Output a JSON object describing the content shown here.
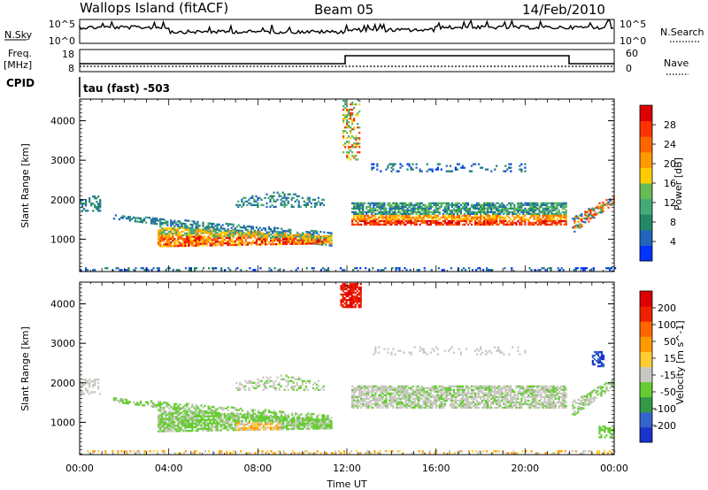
{
  "header": {
    "site": "Wallops Island (fitACF)",
    "beam": "Beam 05",
    "date": "14/Feb/2010"
  },
  "params": {
    "nsky_label": "N.Sky",
    "nsky_ticks": [
      "10^5",
      "10^0"
    ],
    "nsearch_label": "N.Search",
    "nsearch_ticks": [
      "10^5",
      "10^0"
    ],
    "freq_label_1": "Freq.",
    "freq_label_2": "[MHz]",
    "freq_ticks": [
      "18",
      "8"
    ],
    "nave_label": "Nave",
    "nave_ticks": [
      "60",
      "0"
    ],
    "cpid_label": "CPID",
    "cpid_value": "tau (fast) -503"
  },
  "chart_data": [
    {
      "type": "heatmap",
      "title": "",
      "xlabel": "",
      "ylabel": "Slant Range [km]",
      "x_ticks": [
        "00:00",
        "04:00",
        "08:00",
        "12:00",
        "16:00",
        "20:00",
        "00:00"
      ],
      "y_ticks": [
        "1000",
        "2000",
        "3000",
        "4000"
      ],
      "xlim_hours": [
        0,
        24
      ],
      "ylim_km": [
        180,
        4550
      ],
      "colorbar_label": "Power [dB]",
      "colorbar_ticks": [
        "28",
        "24",
        "20",
        "16",
        "12",
        "8",
        "4"
      ],
      "colorbar_colors": [
        "#0033ff",
        "#2266bb",
        "#228866",
        "#44aa77",
        "#66bb55",
        "#ffcc00",
        "#ff9900",
        "#ff6600",
        "#ff3300",
        "#dd0000"
      ]
    },
    {
      "type": "heatmap",
      "title": "",
      "xlabel": "Time UT",
      "ylabel": "Slant Range [km]",
      "x_ticks": [
        "00:00",
        "04:00",
        "08:00",
        "12:00",
        "16:00",
        "20:00",
        "00:00"
      ],
      "y_ticks": [
        "1000",
        "2000",
        "3000",
        "4000"
      ],
      "xlim_hours": [
        0,
        24
      ],
      "ylim_km": [
        180,
        4550
      ],
      "colorbar_label": "Velocity [m s^-1]",
      "colorbar_ticks": [
        "200",
        "100",
        "50",
        "15",
        "-15",
        "-50",
        "-100",
        "-200"
      ],
      "colorbar_colors": [
        "#1a33cc",
        "#3366cc",
        "#339944",
        "#66cc33",
        "#c8c8c0",
        "#ffcc33",
        "#ff9900",
        "#ff6600",
        "#ee2200",
        "#dd0000"
      ]
    }
  ]
}
